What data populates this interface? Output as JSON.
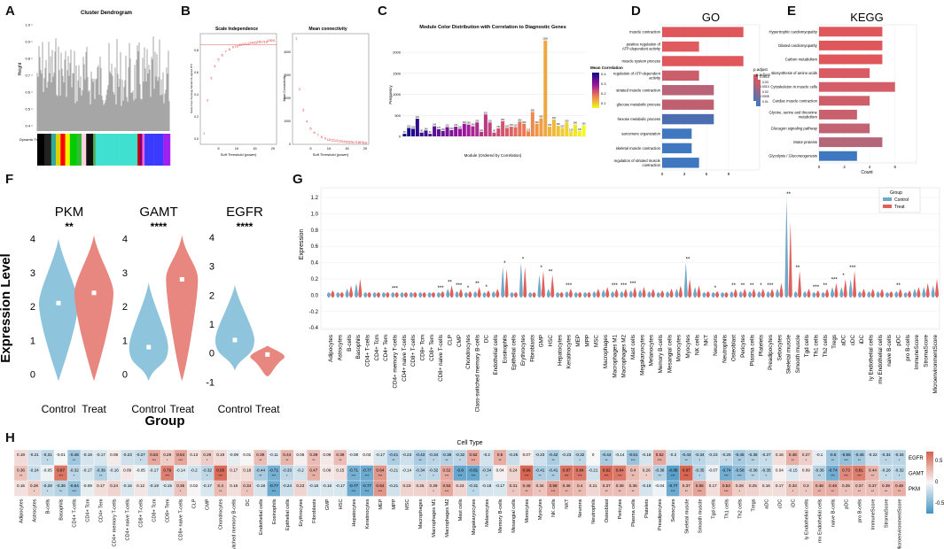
{
  "panel_labels": [
    "A",
    "B",
    "C",
    "D",
    "E",
    "F",
    "G",
    "H"
  ],
  "panelA": {
    "title": "Cluster Dendrogram",
    "ylabel": "Height",
    "yticks": [
      "1.0",
      "0.9",
      "0.8",
      "0.7",
      "0.6",
      "0.5",
      "0.4"
    ],
    "colorbar_label": "Dynamic Tree Cut",
    "module_colors": [
      "#000000",
      "#222",
      "#3a9",
      "#e0d000",
      "#ff0000",
      "#f4f400",
      "#00cc00",
      "#3b3",
      "#ffd0e0",
      "#101010",
      "#5a5",
      "#40e0d0",
      "#40e0d0",
      "#40e0d0",
      "#cc0000",
      "#800080",
      "#ff66cc",
      "#3b3bff",
      "#3b3bff",
      "#a020f0"
    ]
  },
  "panelB": {
    "scale_title": "Scale Independence",
    "scale_ylabel": "Scale Free Topology Model Fit,signed R^2",
    "scale_xlabel": "Soft Threshold (power)",
    "conn_title": "Mean connectivity",
    "conn_ylabel": "Mean Connectivity",
    "conn_xlabel": "Soft Threshold (power)",
    "scale_xticks": [
      "5",
      "10",
      "15",
      "20"
    ],
    "conn_xticks": [
      "5",
      "10",
      "15",
      "20"
    ],
    "scale_yticks": [
      "0.8",
      "0.6",
      "0.4",
      "0.2",
      "0.0"
    ],
    "conn_yticks": [
      "4000",
      "3000",
      "2000",
      "1000",
      "0"
    ],
    "power": [
      1,
      2,
      3,
      4,
      5,
      6,
      7,
      8,
      9,
      10,
      11,
      12,
      13,
      14,
      15,
      16,
      17,
      18,
      19,
      20
    ],
    "scale_fit": [
      0.05,
      0.35,
      0.55,
      0.66,
      0.72,
      0.76,
      0.79,
      0.81,
      0.83,
      0.84,
      0.85,
      0.86,
      0.86,
      0.87,
      0.87,
      0.88,
      0.88,
      0.88,
      0.89,
      0.89
    ],
    "mean_conn": [
      4600,
      2400,
      1500,
      1000,
      700,
      520,
      400,
      320,
      260,
      220,
      190,
      165,
      145,
      130,
      118,
      108,
      100,
      93,
      88,
      84
    ]
  },
  "panelC": {
    "title": "Module Color Distribution with Correlation to Diagnostic Genes",
    "ylabel": "Frequency",
    "xlabel": "Module (Ordered by Correlation)",
    "legend_title": "Mean Correlation",
    "legend_ticks": [
      "0.4",
      "0.3",
      "0.2",
      "0.1"
    ],
    "yticks": [
      "2000",
      "1500",
      "1000",
      "500",
      "0"
    ],
    "chart_data": {
      "type": "bar",
      "values": [
        60,
        200,
        180,
        420,
        90,
        140,
        60,
        240,
        170,
        130,
        220,
        150,
        230,
        180,
        300,
        280,
        240,
        330,
        110,
        520,
        330,
        90,
        190,
        360,
        200,
        230,
        220,
        350,
        300,
        120,
        580,
        300,
        430,
        2280,
        230,
        400,
        250,
        200,
        330,
        120,
        280,
        130,
        260
      ]
    }
  },
  "panelD": {
    "title": "GO",
    "legend_title": "p.adjust",
    "xlabel": "Count",
    "xticks": [
      "0",
      "3",
      "6",
      "9"
    ],
    "legend_ticks": [
      "0.0015",
      "0.0010",
      "0.0005"
    ],
    "chart_data": {
      "type": "bar",
      "categories": [
        "muscle contraction",
        "positive regulation of ATP-dependent activity",
        "muscle system process",
        "regulation of ATP-dependent activity",
        "striated muscle contraction",
        "glucose metabolic process",
        "hexose metabolic process",
        "sarcomere organization",
        "skeletal muscle contraction",
        "regulation of striated muscle contraction"
      ],
      "values": [
        11,
        5,
        11,
        5,
        7,
        7,
        7,
        4,
        4,
        5
      ],
      "colors": [
        "#e0575b",
        "#e05b5f",
        "#e0575b",
        "#cc5e6c",
        "#b86377",
        "#c0606f",
        "#4a6eb0",
        "#3f78c0",
        "#3f78c0",
        "#3f78c0"
      ]
    }
  },
  "panelE": {
    "title": "KEGG",
    "legend_title": "p.adjust",
    "xlabel": "Count",
    "xticks": [
      "0",
      "2",
      "4",
      "6"
    ],
    "legend_ticks": [
      "0.03",
      "0.02",
      "0.01"
    ],
    "chart_data": {
      "type": "bar",
      "categories": [
        "Hypertrophic cardiomyopathy",
        "Dilated cardiomyopathy",
        "Carbon metabolism",
        "Biosynthesis of amino acids",
        "Cytoskeleton in muscle cells",
        "Cardiac muscle contraction",
        "Glycine, serine and threonine metabolism",
        "Glucagon signaling pathway",
        "Motor proteins",
        "Glycolysis / Gluconeogenesis"
      ],
      "values": [
        5,
        5,
        5,
        4,
        6,
        4,
        3,
        4,
        5,
        3
      ],
      "colors": [
        "#e0575b",
        "#e0575b",
        "#e0575b",
        "#d95a63",
        "#d35d68",
        "#cf5e6b",
        "#c9606e",
        "#c16372",
        "#b56679",
        "#3f78c0"
      ]
    }
  },
  "panelF": {
    "ylabel": "Expression Level",
    "xlabel": "Group",
    "groups": [
      "Control",
      "Treat"
    ],
    "genes": [
      {
        "name": "PKM",
        "sig": "**",
        "yticks": [
          "4",
          "3",
          "2",
          "1",
          "0"
        ],
        "medians": [
          2.1,
          2.4
        ]
      },
      {
        "name": "GAMT",
        "sig": "****",
        "yticks": [
          "4",
          "3",
          "2",
          "1",
          "0"
        ],
        "medians": [
          0.8,
          2.8
        ]
      },
      {
        "name": "EGFR",
        "sig": "****",
        "yticks": [
          "4",
          "3",
          "2",
          "1",
          "0",
          "-1"
        ],
        "medians": [
          0.45,
          -0.05
        ]
      }
    ]
  },
  "panelG": {
    "ylabel": "Expression",
    "legend_title": "Group",
    "legend_items": [
      "Control",
      "Treat"
    ],
    "yticks": [
      "1.2",
      "1.0",
      "0.8",
      "0.6",
      "0.4",
      "0.2",
      "0.0",
      "-0.2",
      "-0.4"
    ],
    "cell_types": [
      "Adipocytes",
      "Astrocytes",
      "B-cells",
      "Basophils",
      "CD4+ T-cells",
      "CD4+ Tcm",
      "CD4+ Tem",
      "CD4+ memory T-cells",
      "CD4+ naive T-cells",
      "CD8+ T-cells",
      "CD8+ Tcm",
      "CD8+ Tem",
      "CD8+ naive T-cells",
      "CLP",
      "CMP",
      "Chondrocytes",
      "Class-switched memory B-cells",
      "DC",
      "Endothelial cells",
      "Eosinophils",
      "Epithelial cells",
      "Erythrocytes",
      "Fibroblasts",
      "GMP",
      "HSC",
      "Hepatocytes",
      "Keratinocytes",
      "MEP",
      "MPP",
      "MSC",
      "Macrophages",
      "Macrophages M1",
      "Macrophages M2",
      "Mast cells",
      "Megakaryocytes",
      "Melanocytes",
      "Memory B-cells",
      "Mesangial cells",
      "Monocytes",
      "Myocytes",
      "NK cells",
      "NKT",
      "Neurons",
      "Neutrophils",
      "Osteoblast",
      "Pericytes",
      "Plasma cells",
      "Platelets",
      "Preadipocytes",
      "Sebocytes",
      "Skeletal muscle",
      "Smooth muscle",
      "Tgd cells",
      "Th1 cells",
      "Th2 cells",
      "Tregs",
      "aDC",
      "cDC",
      "iDC",
      "ly Endothelial cells",
      "mv Endothelial cells",
      "naive B-cells",
      "pDC",
      "pro B-cells",
      "ImmuneScore",
      "StromaScore",
      "MicroenvironmentScore"
    ],
    "sig": [
      "",
      "",
      "",
      "",
      "",
      "",
      "",
      "***",
      "",
      "",
      "",
      "",
      "***",
      "**",
      "***",
      "*",
      "**",
      "*",
      "",
      "*",
      "",
      "*",
      "",
      "*",
      "**",
      "",
      "***",
      "",
      "",
      "",
      "",
      "***",
      "***",
      "***",
      "",
      "",
      "",
      "",
      "",
      "**",
      "",
      "",
      "*",
      "",
      "**",
      "**",
      "**",
      "*",
      "***",
      "",
      "**",
      "**",
      "",
      "***",
      "**",
      "***",
      "*",
      "***",
      "",
      "",
      "",
      "",
      "**",
      "",
      "",
      "",
      ""
    ],
    "control_peak": [
      0.03,
      0.02,
      0.08,
      0.15,
      0.01,
      0.01,
      0.01,
      0.02,
      0.01,
      0.01,
      0.01,
      0.01,
      0.02,
      0.08,
      0.05,
      0.02,
      0.05,
      0.03,
      0.05,
      0.35,
      0.02,
      0.4,
      0.02,
      0.25,
      0.08,
      0.02,
      0.05,
      0.03,
      0.02,
      0.05,
      0.07,
      0.05,
      0.05,
      0.06,
      0.07,
      0.05,
      0.04,
      0.05,
      0.08,
      0.4,
      0.1,
      0.03,
      0.03,
      0.02,
      0.05,
      0.05,
      0.05,
      0.05,
      0.05,
      0.08,
      1.2,
      0.05,
      0.05,
      0.03,
      0.03,
      0.1,
      0.1,
      0.2,
      0.05,
      0.05,
      0.05,
      0.03,
      0.05,
      0.04,
      0.08,
      0.1,
      0.12
    ],
    "treat_peak": [
      0.06,
      0.03,
      0.12,
      0.2,
      0.02,
      0.01,
      0.02,
      0.04,
      0.02,
      0.01,
      0.01,
      0.01,
      0.05,
      0.12,
      0.08,
      0.05,
      0.1,
      0.06,
      0.08,
      0.32,
      0.03,
      0.35,
      0.04,
      0.3,
      0.25,
      0.04,
      0.08,
      0.04,
      0.03,
      0.08,
      0.1,
      0.08,
      0.08,
      0.1,
      0.1,
      0.08,
      0.06,
      0.08,
      0.12,
      0.2,
      0.12,
      0.05,
      0.05,
      0.04,
      0.08,
      0.08,
      0.08,
      0.08,
      0.08,
      0.15,
      0.9,
      0.3,
      0.08,
      0.06,
      0.08,
      0.15,
      0.2,
      0.3,
      0.08,
      0.08,
      0.08,
      0.05,
      0.08,
      0.06,
      0.1,
      0.15,
      0.2
    ]
  },
  "panelH": {
    "title": "Cell Type",
    "genes": [
      "EGFR",
      "GAMT",
      "PKM"
    ],
    "legend_ticks": [
      "0.5",
      "0",
      "-0.5"
    ],
    "cell_types": [
      "Adipocytes",
      "Astrocytes",
      "B-cells",
      "Basophils",
      "CD4+ T-cells",
      "CD4+ Tcm",
      "CD4+ Tem",
      "CD4+ memory T-cells",
      "CD4+ naive T-cells",
      "CD8+ T-cells",
      "CD8+ Tcm",
      "CD8+ Tem",
      "CD8+ naive T-cells",
      "CLP",
      "CMP",
      "Chondrocytes",
      "Class-switched memory B-cells",
      "DC",
      "Endothelial cells",
      "Eosinophils",
      "Epithelial cells",
      "Erythrocytes",
      "Fibroblasts",
      "GMP",
      "HSC",
      "Hepatocytes",
      "Keratinocytes",
      "MEP",
      "MPP",
      "MSC",
      "Macrophages",
      "Macrophages M1",
      "Macrophages M2",
      "Mast cells",
      "Megakaryocytes",
      "Melanocytes",
      "Memory B-cells",
      "Mesangial cells",
      "Monocytes",
      "Myocytes",
      "NK cells",
      "NKT",
      "Neurons",
      "Neutrophils",
      "Osteoblast",
      "Pericytes",
      "Plasma cells",
      "Platelets",
      "Preadipocytes",
      "Sebocytes",
      "Skeletal muscle",
      "Smooth muscle",
      "Tgd cells",
      "Th1 cells",
      "Th2 cells",
      "Tregs",
      "aDC",
      "cDC",
      "iDC",
      "ly Endothelial cells",
      "mv Endothelial cells",
      "naive B-cells",
      "pDC",
      "pro B-cells",
      "ImmuneScore",
      "StromaScore",
      "MicroenvironmentScore"
    ],
    "rows": [
      [
        0.19,
        -0.21,
        -0.31,
        -0.01,
        -0.48,
        -0.19,
        -0.17,
        0.08,
        -0.23,
        -0.27,
        0.53,
        0.28,
        0.54,
        0.13,
        0.29,
        0.19,
        -0.09,
        0.01,
        0.39,
        -0.11,
        0.44,
        0.05,
        0.39,
        0.09,
        0.39,
        -0.08,
        0.03,
        -0.17,
        -0.41,
        -0.23,
        -0.43,
        -0.34,
        -0.38,
        -0.32,
        0.52,
        -0.2,
        0.5,
        -0.25,
        0.07,
        -0.23,
        -0.42,
        -0.23,
        -0.32,
        0,
        -0.44,
        -0.14,
        -0.51,
        -0.18,
        0.52,
        -0.2,
        -0.43,
        -0.34,
        -0.23,
        -0.26,
        -0.45,
        -0.36,
        -0.27,
        0.16,
        0.48,
        0.27,
        -0.1,
        -0.5,
        -0.55,
        -0.46,
        -0.22,
        -0.34,
        -0.34
      ],
      [
        0.36,
        -0.24,
        -0.05,
        0.87,
        -0.32,
        -0.17,
        -0.39,
        -0.16,
        0.09,
        -0.05,
        -0.17,
        0.79,
        -0.14,
        -0.2,
        -0.32,
        0.93,
        0.17,
        0.18,
        -0.44,
        -0.71,
        -0.33,
        -0.2,
        0.47,
        0.09,
        0.15,
        -0.71,
        -0.77,
        0.64,
        -0.21,
        -0.14,
        -0.34,
        -0.32,
        0.52,
        -0.8,
        -0.81,
        -0.34,
        0.04,
        0.24,
        0.96,
        -0.41,
        -0.41,
        0.87,
        0.84,
        -0.21,
        0.92,
        0.84,
        0.4,
        0.26,
        -0.38,
        -0.88,
        0.97,
        -0.35,
        -0.07,
        -0.74,
        -0.58,
        -0.36,
        -0.35,
        0.04,
        -0.15,
        0.09,
        -0.36,
        -0.74,
        0.73,
        0.81,
        0.44,
        -0.28,
        -0.32
      ],
      [
        0.15,
        0.28,
        -0.28,
        -0.36,
        -0.54,
        -0.09,
        0.17,
        0.24,
        -0.16,
        0.12,
        -0.19,
        -0.15,
        0.35,
        0.02,
        -0.17,
        0.4,
        0.16,
        0.34,
        -0.18,
        -0.77,
        -0.24,
        0.23,
        -0.18,
        -0.16,
        -0.17,
        -0.77,
        -0.77,
        0.64,
        -0.21,
        0.23,
        0.25,
        0.29,
        0.53,
        0.23,
        -0.31,
        -0.18,
        -0.17,
        0.31,
        0.48,
        0.34,
        0.58,
        0.46,
        0.4,
        0.21,
        0.37,
        0.38,
        0.36,
        -0.19,
        -0.04,
        -0.77,
        0.37,
        0.55,
        0.17,
        0.53,
        0.28,
        0.25,
        0.16,
        0.17,
        0.33,
        0.3,
        0.48,
        0.49,
        0.35,
        0.37,
        0.37,
        0.39,
        0.48
      ]
    ]
  }
}
